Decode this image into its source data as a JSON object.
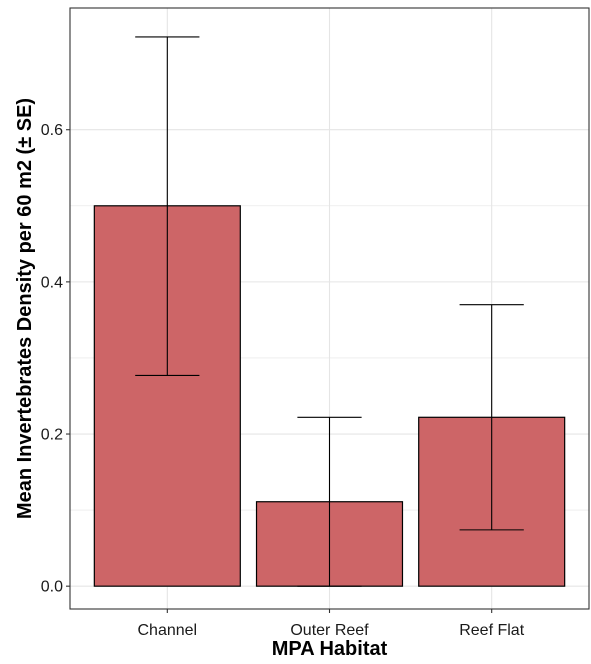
{
  "chart_data": {
    "type": "bar",
    "categories": [
      "Channel",
      "Outer Reef",
      "Reef Flat"
    ],
    "values": [
      0.5,
      0.111,
      0.222
    ],
    "error_lower": [
      0.277,
      0.0,
      0.074
    ],
    "error_upper": [
      0.722,
      0.222,
      0.37
    ],
    "xlabel": "MPA Habitat",
    "ylabel": "Mean Invertebrates Density per 60 m2 (± SE)",
    "ylim": [
      -0.03,
      0.76
    ],
    "yticks": [
      0.0,
      0.2,
      0.4,
      0.6
    ],
    "ytick_labels": [
      "0.0",
      "0.2",
      "0.4",
      "0.6"
    ],
    "grid": true,
    "bar_color": "#CD6567",
    "bar_stroke": "#000000",
    "gridline_color": "#E5E5E5",
    "panel_border_color": "#333333"
  }
}
